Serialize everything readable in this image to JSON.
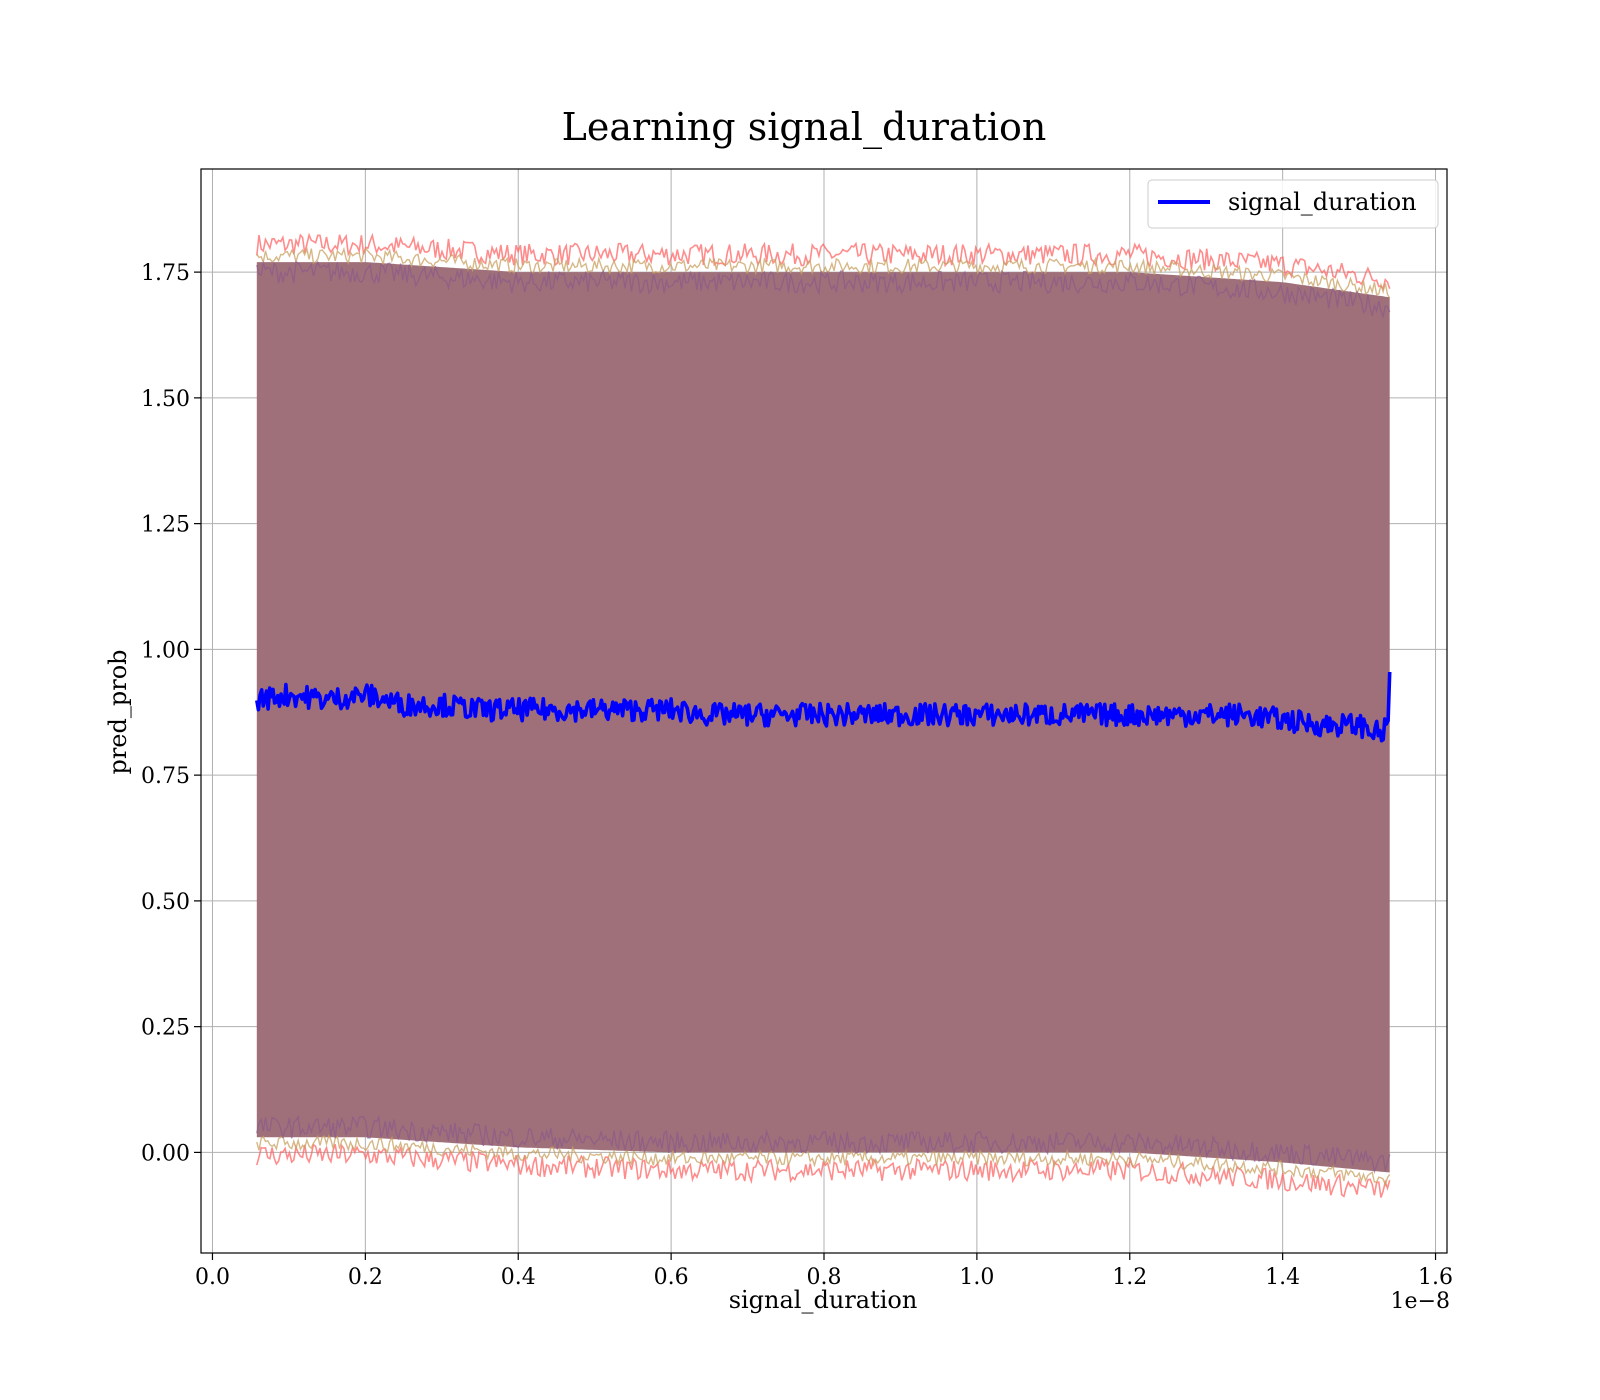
{
  "chart_data": {
    "type": "line",
    "title": "Learning signal_duration",
    "xlabel": "signal_duration",
    "ylabel": "pred_prob",
    "x_offset_label": "1e−8",
    "x_scale_factor": 1e-08,
    "xlim": [
      -0.015,
      1.615
    ],
    "ylim": [
      -0.2,
      1.955
    ],
    "x_ticks": [
      0.0,
      0.2,
      0.4,
      0.6,
      0.8,
      1.0,
      1.2,
      1.4,
      1.6
    ],
    "x_tick_labels": [
      "0.0",
      "0.2",
      "0.4",
      "0.6",
      "0.8",
      "1.0",
      "1.2",
      "1.4",
      "1.6"
    ],
    "y_ticks": [
      0.0,
      0.25,
      0.5,
      0.75,
      1.0,
      1.25,
      1.5,
      1.75
    ],
    "y_tick_labels": [
      "0.00",
      "0.25",
      "0.50",
      "0.75",
      "1.00",
      "1.25",
      "1.50",
      "1.75"
    ],
    "grid": true,
    "legend": {
      "placement": "top-right",
      "entries": [
        "signal_duration"
      ]
    },
    "colors": {
      "line": "#0000ff",
      "band_fill": "#a0707a",
      "band_edge_outer": "#ff6666",
      "band_edge_inner": "#c8a060",
      "band_edge_purple": "#8a5a8a",
      "grid": "#b0b0b0"
    },
    "series": [
      {
        "name": "signal_duration",
        "x": [
          0.058,
          0.1,
          0.15,
          0.2,
          0.25,
          0.3,
          0.35,
          0.4,
          0.45,
          0.5,
          0.55,
          0.6,
          0.65,
          0.7,
          0.75,
          0.8,
          0.85,
          0.9,
          0.95,
          1.0,
          1.05,
          1.1,
          1.15,
          1.2,
          1.25,
          1.3,
          1.35,
          1.4,
          1.45,
          1.5,
          1.53,
          1.54
        ],
        "y": [
          0.9,
          0.91,
          0.9,
          0.91,
          0.89,
          0.89,
          0.88,
          0.88,
          0.88,
          0.88,
          0.88,
          0.88,
          0.87,
          0.87,
          0.87,
          0.87,
          0.87,
          0.87,
          0.87,
          0.87,
          0.87,
          0.87,
          0.87,
          0.87,
          0.87,
          0.87,
          0.87,
          0.86,
          0.85,
          0.85,
          0.83,
          0.86
        ]
      }
    ],
    "band": {
      "x": [
        0.058,
        0.2,
        0.4,
        0.6,
        0.8,
        1.0,
        1.2,
        1.4,
        1.54
      ],
      "upper": [
        1.77,
        1.77,
        1.75,
        1.75,
        1.75,
        1.75,
        1.75,
        1.73,
        1.7
      ],
      "lower": [
        0.03,
        0.03,
        0.01,
        0.0,
        0.0,
        0.0,
        0.0,
        -0.02,
        -0.04
      ]
    }
  }
}
